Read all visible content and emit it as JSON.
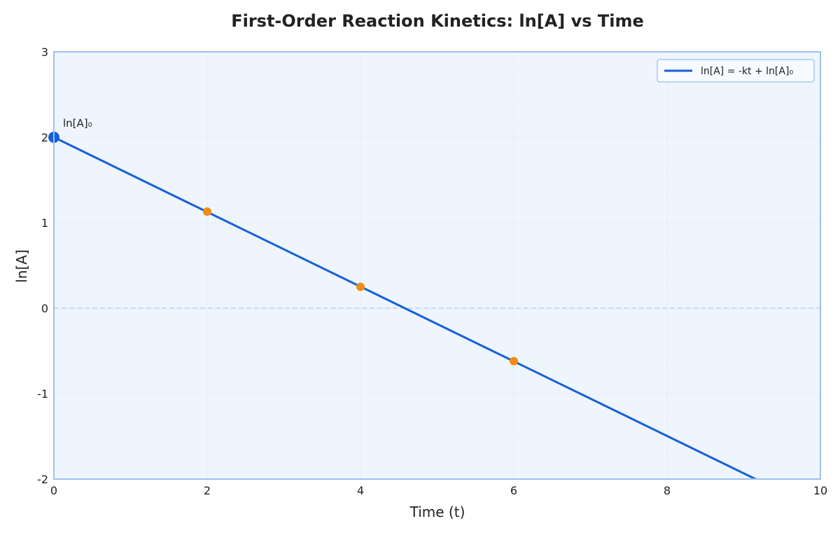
{
  "chart_data": {
    "type": "line",
    "title": "First-Order Reaction Kinetics: ln[A] vs Time",
    "xlabel": "Time (t)",
    "ylabel": "ln[A]",
    "xlim": [
      0,
      10
    ],
    "ylim": [
      -2,
      3
    ],
    "xticks": [
      0,
      2,
      4,
      6,
      8,
      10
    ],
    "yticks": [
      -2,
      -1,
      0,
      1,
      2,
      3
    ],
    "grid": true,
    "legend_position": "top-right",
    "series": [
      {
        "name": "ln[A] = -kt + ln[A]₀",
        "x": [
          0,
          10
        ],
        "y": [
          2.0,
          -2.37
        ],
        "color": "#1560d8"
      }
    ],
    "markers": [
      {
        "x": 2,
        "y": 1.13,
        "color": "#f28c0f"
      },
      {
        "x": 4,
        "y": 0.25,
        "color": "#f28c0f"
      },
      {
        "x": 6,
        "y": -0.62,
        "color": "#f28c0f"
      }
    ],
    "intercept_point": {
      "x": 0,
      "y": 2.0,
      "color": "#1560d8"
    },
    "annotation": {
      "text": "ln[A]₀",
      "x": 0,
      "y": 2.0
    },
    "reference_line": {
      "y": 0,
      "color": "#b8d4f0"
    },
    "colors": {
      "plot_background": "#eff5fd",
      "frame": "#9ebff0",
      "grid": "#d9e4f2"
    }
  }
}
